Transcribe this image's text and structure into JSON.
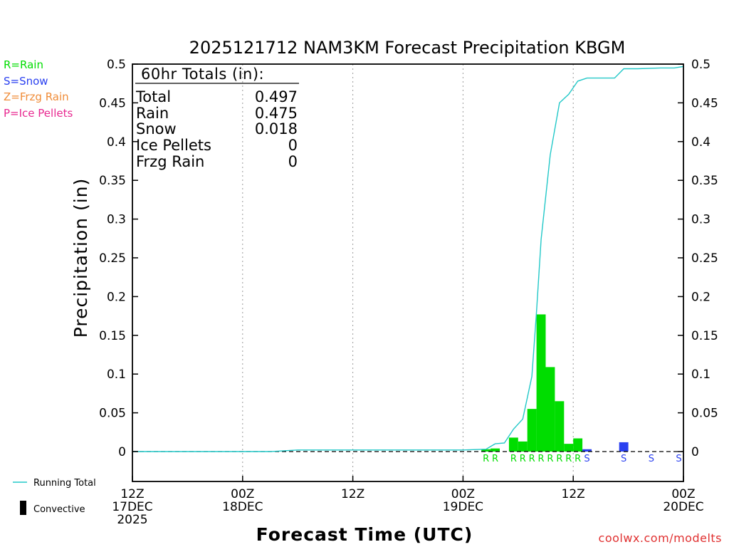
{
  "chart_data": {
    "type": "bar",
    "title": "2025121712 NAM3KM Forecast Precipitation KBGM",
    "xlabel": "Forecast Time (UTC)",
    "ylabel": "Precipitation (in)",
    "ylim": [
      -0.04,
      0.5
    ],
    "y_ticks": [
      "0",
      "0.05",
      "0.1",
      "0.15",
      "0.2",
      "0.25",
      "0.3",
      "0.35",
      "0.4",
      "0.45",
      "0.5"
    ],
    "x_range_hours": [
      0,
      60
    ],
    "x_ticks": [
      {
        "hour": 0,
        "line1": "12Z",
        "line2": "17DEC",
        "line3": "2025"
      },
      {
        "hour": 12,
        "line1": "00Z",
        "line2": "18DEC",
        "line3": ""
      },
      {
        "hour": 24,
        "line1": "12Z",
        "line2": "",
        "line3": ""
      },
      {
        "hour": 36,
        "line1": "00Z",
        "line2": "19DEC",
        "line3": ""
      },
      {
        "hour": 48,
        "line1": "12Z",
        "line2": "",
        "line3": ""
      },
      {
        "hour": 60,
        "line1": "00Z",
        "line2": "20DEC",
        "line3": ""
      }
    ],
    "bars": [
      {
        "hour": 39,
        "value": 0.003,
        "type": "R"
      },
      {
        "hour": 40,
        "value": 0.004,
        "type": "R"
      },
      {
        "hour": 42,
        "value": 0.018,
        "type": "R"
      },
      {
        "hour": 43,
        "value": 0.013,
        "type": "R"
      },
      {
        "hour": 44,
        "value": 0.055,
        "type": "R"
      },
      {
        "hour": 45,
        "value": 0.177,
        "type": "R"
      },
      {
        "hour": 46,
        "value": 0.109,
        "type": "R"
      },
      {
        "hour": 47,
        "value": 0.065,
        "type": "R"
      },
      {
        "hour": 48,
        "value": 0.01,
        "type": "R"
      },
      {
        "hour": 49,
        "value": 0.017,
        "type": "R"
      },
      {
        "hour": 50,
        "value": 0.003,
        "type": "S"
      },
      {
        "hour": 54,
        "value": 0.012,
        "type": "S"
      },
      {
        "hour": 57,
        "value": 0.0,
        "type": "S"
      },
      {
        "hour": 60,
        "value": 0.0,
        "type": "S"
      }
    ],
    "running_total": [
      [
        0,
        0
      ],
      [
        15,
        0
      ],
      [
        18,
        0.002
      ],
      [
        36,
        0.002
      ],
      [
        38.5,
        0.003
      ],
      [
        39.5,
        0.01
      ],
      [
        40.5,
        0.011
      ],
      [
        41.5,
        0.029
      ],
      [
        42.5,
        0.042
      ],
      [
        43.5,
        0.097
      ],
      [
        44,
        0.18
      ],
      [
        44.5,
        0.274
      ],
      [
        45.5,
        0.383
      ],
      [
        46.5,
        0.45
      ],
      [
        47.5,
        0.461
      ],
      [
        48.5,
        0.478
      ],
      [
        49.5,
        0.482
      ],
      [
        50.5,
        0.482
      ],
      [
        52.5,
        0.482
      ],
      [
        53.5,
        0.494
      ],
      [
        55,
        0.494
      ],
      [
        57.5,
        0.495
      ],
      [
        59,
        0.495
      ],
      [
        60,
        0.497
      ]
    ],
    "series_colors": {
      "rain": "#00dd00",
      "snow": "#2a40f0",
      "running_total": "#22c8c8",
      "convective": "#000000"
    }
  },
  "precip_legend": [
    {
      "label": "R=Rain",
      "color": "#00dd00"
    },
    {
      "label": "S=Snow",
      "color": "#2a40f0"
    },
    {
      "label": "Z=Frzg Rain",
      "color": "#f08c38"
    },
    {
      "label": "P=Ice Pellets",
      "color": "#e82890"
    }
  ],
  "totals_box": {
    "heading": "60hr Totals (in):",
    "rows": [
      {
        "label": "Total",
        "value": "0.497"
      },
      {
        "label": "Rain",
        "value": "0.475"
      },
      {
        "label": "Snow",
        "value": "0.018"
      },
      {
        "label": "Ice Pellets",
        "value": "0"
      },
      {
        "label": "Frzg Rain",
        "value": "0"
      }
    ]
  },
  "line_legend": {
    "running_total": "Running Total",
    "convective": "Convective"
  },
  "watermark": "coolwx.com/modelts"
}
